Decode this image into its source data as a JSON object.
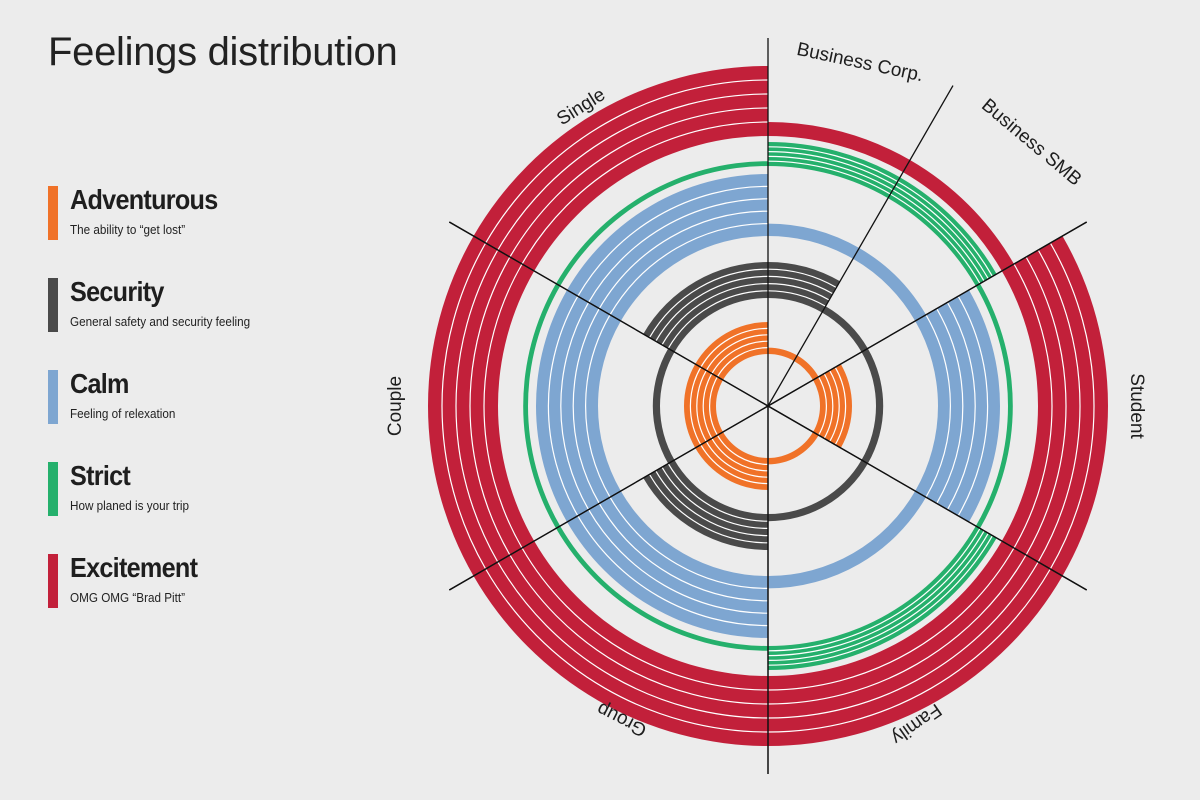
{
  "title": "Feelings distribution",
  "legend": [
    {
      "name": "Adventurous",
      "desc": "The ability to “get lost”",
      "color": "#f07228"
    },
    {
      "name": "Security",
      "desc": "General safety and security feeling",
      "color": "#4a4a4a"
    },
    {
      "name": "Calm",
      "desc": "Feeling of relexation",
      "color": "#7ea6d1"
    },
    {
      "name": "Strict",
      "desc": "How planed is your trip",
      "color": "#25b06c"
    },
    {
      "name": "Excitement",
      "desc": "OMG OMG “Brad Pitt”",
      "color": "#c2203a"
    }
  ],
  "chart_data": {
    "type": "radial-bar",
    "title": "Feelings distribution",
    "series_names": [
      "Adventurous",
      "Security",
      "Calm",
      "Strict",
      "Excitement"
    ],
    "segments": [
      {
        "name": "Business Corp.",
        "values": [
          1,
          5,
          1,
          5,
          1
        ]
      },
      {
        "name": "Business SMB",
        "values": [
          1,
          1,
          1,
          5,
          1
        ]
      },
      {
        "name": "Student",
        "values": [
          5,
          1,
          5,
          1,
          5
        ]
      },
      {
        "name": "Family",
        "values": [
          1,
          1,
          1,
          5,
          5
        ]
      },
      {
        "name": "Group",
        "values": [
          5,
          5,
          5,
          1,
          5
        ]
      },
      {
        "name": "Couple",
        "values": [
          5,
          1,
          5,
          1,
          5
        ]
      },
      {
        "name": "Single",
        "values": [
          5,
          5,
          5,
          1,
          5
        ]
      }
    ],
    "max_value": 5
  }
}
